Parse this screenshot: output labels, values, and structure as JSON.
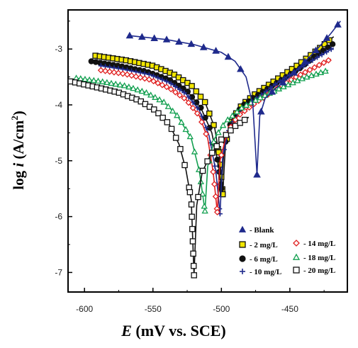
{
  "chart_data": {
    "type": "scatter",
    "title": "",
    "xlabel_symbol": "E",
    "xlabel_rest": " (mV vs. SCE)",
    "ylabel_prefix": "log ",
    "ylabel_symbol": "i",
    "ylabel_unit": " (A/cm",
    "ylabel_sup": "2",
    "ylabel_close": ")",
    "xlim": [
      -612,
      -408
    ],
    "ylim": [
      -7.35,
      -2.3
    ],
    "x_ticks": [
      -600,
      -550,
      -500,
      -450
    ],
    "x_tick_labels": [
      "-600",
      "-550",
      "-500",
      "-450"
    ],
    "y_ticks": [
      -7,
      -6,
      -5,
      -4,
      -3
    ],
    "y_tick_labels": [
      "-7",
      "-6",
      "-5",
      "-4",
      "-3"
    ],
    "grid": false,
    "legend_position": "bottom-right",
    "series": [
      {
        "name": "- Blank",
        "marker": "triangle",
        "color": "#1f2a8c",
        "fill": "#1f2a8c",
        "ecorr": -474,
        "ymin": -5.25,
        "cathodic": [
          [
            -567,
            -2.76
          ],
          [
            -540,
            -2.83
          ],
          [
            -520,
            -2.92
          ],
          [
            -500,
            -3.06
          ],
          [
            -490,
            -3.22
          ],
          [
            -482,
            -3.5
          ],
          [
            -477,
            -4.0
          ],
          [
            -474,
            -5.25
          ]
        ],
        "anodic": [
          [
            -474,
            -5.25
          ],
          [
            -472,
            -4.2
          ],
          [
            -468,
            -3.88
          ],
          [
            -460,
            -3.7
          ],
          [
            -450,
            -3.5
          ],
          [
            -440,
            -3.25
          ],
          [
            -430,
            -3.0
          ],
          [
            -420,
            -2.72
          ],
          [
            -413,
            -2.5
          ]
        ]
      },
      {
        "name": "- 2 mg/L",
        "marker": "square",
        "color": "#111111",
        "fill": "#f2e600",
        "ecorr": -499,
        "ymin": -5.6,
        "cathodic": [
          [
            -592,
            -3.12
          ],
          [
            -570,
            -3.2
          ],
          [
            -550,
            -3.3
          ],
          [
            -535,
            -3.45
          ],
          [
            -522,
            -3.65
          ],
          [
            -512,
            -3.95
          ],
          [
            -505,
            -4.4
          ],
          [
            -501,
            -5.0
          ],
          [
            -499,
            -5.6
          ]
        ],
        "anodic": [
          [
            -499,
            -5.6
          ],
          [
            -497,
            -4.7
          ],
          [
            -492,
            -4.25
          ],
          [
            -485,
            -4.0
          ],
          [
            -475,
            -3.8
          ],
          [
            -460,
            -3.55
          ],
          [
            -445,
            -3.3
          ],
          [
            -430,
            -3.02
          ],
          [
            -418,
            -2.78
          ]
        ]
      },
      {
        "name": "- 6 mg/L",
        "marker": "circle",
        "color": "#111111",
        "fill": "#111111",
        "ecorr": -500,
        "ymin": -5.5,
        "cathodic": [
          [
            -595,
            -3.22
          ],
          [
            -575,
            -3.3
          ],
          [
            -555,
            -3.4
          ],
          [
            -538,
            -3.55
          ],
          [
            -525,
            -3.75
          ],
          [
            -515,
            -4.05
          ],
          [
            -507,
            -4.5
          ],
          [
            -502,
            -5.1
          ],
          [
            -500,
            -5.5
          ]
        ],
        "anodic": [
          [
            -500,
            -5.5
          ],
          [
            -498,
            -4.75
          ],
          [
            -493,
            -4.3
          ],
          [
            -485,
            -4.02
          ],
          [
            -472,
            -3.8
          ],
          [
            -458,
            -3.58
          ],
          [
            -443,
            -3.35
          ],
          [
            -430,
            -3.1
          ],
          [
            -418,
            -2.9
          ]
        ]
      },
      {
        "name": "- 10 mg/L",
        "marker": "plus",
        "color": "#1f2a8c",
        "fill": "none",
        "ecorr": -501,
        "ymin": -5.95,
        "cathodic": [
          [
            -588,
            -3.3
          ],
          [
            -570,
            -3.37
          ],
          [
            -552,
            -3.46
          ],
          [
            -538,
            -3.6
          ],
          [
            -526,
            -3.8
          ],
          [
            -516,
            -4.1
          ],
          [
            -509,
            -4.55
          ],
          [
            -504,
            -5.2
          ],
          [
            -501,
            -5.95
          ]
        ],
        "anodic": [
          [
            -501,
            -5.95
          ],
          [
            -499,
            -4.9
          ],
          [
            -494,
            -4.4
          ],
          [
            -486,
            -4.1
          ],
          [
            -474,
            -3.88
          ],
          [
            -460,
            -3.62
          ],
          [
            -445,
            -3.38
          ],
          [
            -430,
            -3.15
          ],
          [
            -418,
            -2.98
          ]
        ]
      },
      {
        "name": "- 14 mg/L",
        "marker": "diamond",
        "color": "#e02020",
        "fill": "#ffffff",
        "ecorr": -503,
        "ymin": -5.92,
        "cathodic": [
          [
            -588,
            -3.38
          ],
          [
            -570,
            -3.45
          ],
          [
            -552,
            -3.55
          ],
          [
            -538,
            -3.7
          ],
          [
            -526,
            -3.9
          ],
          [
            -516,
            -4.2
          ],
          [
            -510,
            -4.6
          ],
          [
            -506,
            -5.2
          ],
          [
            -503,
            -5.92
          ]
        ],
        "anodic": [
          [
            -503,
            -5.92
          ],
          [
            -501,
            -5.0
          ],
          [
            -496,
            -4.5
          ],
          [
            -488,
            -4.2
          ],
          [
            -476,
            -3.98
          ],
          [
            -462,
            -3.75
          ],
          [
            -447,
            -3.52
          ],
          [
            -432,
            -3.33
          ],
          [
            -420,
            -3.18
          ]
        ]
      },
      {
        "name": "- 18 mg/L",
        "marker": "triangle-open",
        "color": "#13a050",
        "fill": "#ffffff",
        "ecorr": -512,
        "ymin": -5.9,
        "cathodic": [
          [
            -606,
            -3.52
          ],
          [
            -588,
            -3.58
          ],
          [
            -570,
            -3.66
          ],
          [
            -555,
            -3.78
          ],
          [
            -542,
            -3.95
          ],
          [
            -532,
            -4.2
          ],
          [
            -522,
            -4.6
          ],
          [
            -516,
            -5.2
          ],
          [
            -512,
            -5.9
          ]
        ],
        "anodic": [
          [
            -512,
            -5.9
          ],
          [
            -510,
            -5.1
          ],
          [
            -505,
            -4.6
          ],
          [
            -497,
            -4.3
          ],
          [
            -485,
            -4.05
          ],
          [
            -470,
            -3.85
          ],
          [
            -455,
            -3.68
          ],
          [
            -440,
            -3.52
          ],
          [
            -422,
            -3.38
          ]
        ]
      },
      {
        "name": "- 20 mg/L",
        "marker": "square-open",
        "color": "#111111",
        "fill": "#ffffff",
        "ecorr": -520,
        "ymin": -7.05,
        "cathodic": [
          [
            -610,
            -3.58
          ],
          [
            -592,
            -3.68
          ],
          [
            -575,
            -3.78
          ],
          [
            -560,
            -3.92
          ],
          [
            -548,
            -4.1
          ],
          [
            -538,
            -4.35
          ],
          [
            -531,
            -4.7
          ],
          [
            -526,
            -5.15
          ],
          [
            -522,
            -5.7
          ],
          [
            -520,
            -7.05
          ]
        ],
        "anodic": [
          [
            -520,
            -7.05
          ],
          [
            -518,
            -5.8
          ],
          [
            -514,
            -5.2
          ],
          [
            -508,
            -4.9
          ],
          [
            -500,
            -4.62
          ],
          [
            -490,
            -4.38
          ],
          [
            -480,
            -4.22
          ]
        ]
      }
    ]
  }
}
